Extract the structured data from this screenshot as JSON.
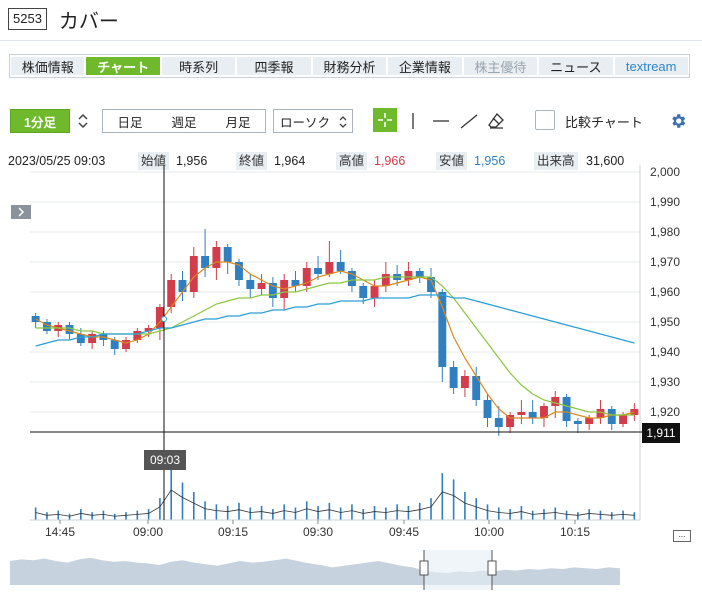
{
  "header": {
    "code": "5253",
    "name": "カバー"
  },
  "tabs": [
    {
      "label": "株価情報",
      "state": "normal"
    },
    {
      "label": "チャート",
      "state": "active"
    },
    {
      "label": "時系列",
      "state": "normal"
    },
    {
      "label": "四季報",
      "state": "normal"
    },
    {
      "label": "財務分析",
      "state": "normal"
    },
    {
      "label": "企業情報",
      "state": "normal"
    },
    {
      "label": "株主優待",
      "state": "muted"
    },
    {
      "label": "ニュース",
      "state": "normal"
    },
    {
      "label": "textream",
      "state": "link"
    }
  ],
  "toolbar": {
    "interval": "1分足",
    "periods": [
      "日足",
      "週足",
      "月足"
    ],
    "chart_type": "ローソク",
    "compare_label": "比較チャート"
  },
  "info": {
    "datetime": "2023/05/25 09:03",
    "open_label": "始値",
    "open": "1,956",
    "close_label": "終値",
    "close": "1,964",
    "high_label": "高値",
    "high": "1,966",
    "low_label": "安値",
    "low": "1,956",
    "volume_label": "出来高",
    "volume": "31,600"
  },
  "crosshair": {
    "time": "09:03",
    "price": "1,911"
  },
  "colors": {
    "up": "#d23c4b",
    "down": "#2f7fc1",
    "ma_short": "#d88a1e",
    "ma_mid": "#8cc63f",
    "ma_long": "#2a9fd6",
    "accent": "#6fb92c"
  },
  "chart_data": {
    "type": "candlestick",
    "y_axis": {
      "ticks": [
        2000,
        1990,
        1980,
        1970,
        1960,
        1950,
        1940,
        1930,
        1920
      ],
      "tick_labels": [
        "2,000",
        "1,990",
        "1,980",
        "1,970",
        "1,960",
        "1,950",
        "1,940",
        "1,930",
        "1,920"
      ],
      "ylim": [
        1910,
        2000
      ]
    },
    "x_axis": {
      "tick_labels": [
        "14:45",
        "09:00",
        "09:15",
        "09:30",
        "09:45",
        "10:00",
        "10:15"
      ]
    },
    "candles": [
      [
        1952,
        1953,
        1948,
        1950
      ],
      [
        1950,
        1951,
        1946,
        1947
      ],
      [
        1947,
        1950,
        1945,
        1949
      ],
      [
        1949,
        1950,
        1944,
        1946
      ],
      [
        1946,
        1948,
        1942,
        1943
      ],
      [
        1943,
        1947,
        1941,
        1946
      ],
      [
        1946,
        1947,
        1942,
        1944
      ],
      [
        1944,
        1945,
        1939,
        1941
      ],
      [
        1941,
        1945,
        1940,
        1944
      ],
      [
        1944,
        1948,
        1943,
        1947
      ],
      [
        1947,
        1949,
        1945,
        1948
      ],
      [
        1948,
        1956,
        1944,
        1955
      ],
      [
        1955,
        1966,
        1953,
        1964
      ],
      [
        1964,
        1967,
        1957,
        1960
      ],
      [
        1960,
        1975,
        1958,
        1972
      ],
      [
        1972,
        1981,
        1965,
        1968
      ],
      [
        1968,
        1977,
        1964,
        1975
      ],
      [
        1975,
        1976,
        1966,
        1970
      ],
      [
        1970,
        1971,
        1962,
        1964
      ],
      [
        1964,
        1966,
        1958,
        1961
      ],
      [
        1961,
        1966,
        1959,
        1963
      ],
      [
        1963,
        1965,
        1955,
        1958
      ],
      [
        1958,
        1966,
        1954,
        1964
      ],
      [
        1964,
        1967,
        1960,
        1962
      ],
      [
        1962,
        1970,
        1960,
        1968
      ],
      [
        1968,
        1972,
        1964,
        1966
      ],
      [
        1966,
        1977,
        1965,
        1970
      ],
      [
        1970,
        1974,
        1966,
        1967
      ],
      [
        1967,
        1968,
        1960,
        1962
      ],
      [
        1962,
        1963,
        1956,
        1958
      ],
      [
        1958,
        1964,
        1955,
        1962
      ],
      [
        1962,
        1970,
        1960,
        1966
      ],
      [
        1966,
        1969,
        1962,
        1964
      ],
      [
        1964,
        1970,
        1962,
        1967
      ],
      [
        1967,
        1968,
        1963,
        1965
      ],
      [
        1965,
        1968,
        1958,
        1960
      ],
      [
        1960,
        1961,
        1930,
        1935
      ],
      [
        1935,
        1937,
        1926,
        1928
      ],
      [
        1928,
        1934,
        1925,
        1932
      ],
      [
        1932,
        1935,
        1922,
        1924
      ],
      [
        1924,
        1926,
        1915,
        1918
      ],
      [
        1918,
        1922,
        1912,
        1915
      ],
      [
        1915,
        1920,
        1913,
        1919
      ],
      [
        1919,
        1924,
        1916,
        1920
      ],
      [
        1920,
        1924,
        1916,
        1918
      ],
      [
        1918,
        1923,
        1915,
        1922
      ],
      [
        1922,
        1927,
        1918,
        1925
      ],
      [
        1925,
        1926,
        1915,
        1917
      ],
      [
        1917,
        1918,
        1913,
        1916
      ],
      [
        1916,
        1919,
        1914,
        1918
      ],
      [
        1918,
        1924,
        1916,
        1921
      ],
      [
        1921,
        1922,
        1914,
        1916
      ],
      [
        1916,
        1920,
        1915,
        1919
      ],
      [
        1919,
        1923,
        1917,
        1921
      ]
    ],
    "ma_short": [
      1951,
      1949,
      1948,
      1947,
      1946,
      1945,
      1945,
      1944,
      1943,
      1944,
      1946,
      1950,
      1955,
      1960,
      1965,
      1968,
      1970,
      1970,
      1969,
      1966,
      1964,
      1962,
      1961,
      1962,
      1963,
      1965,
      1966,
      1967,
      1966,
      1964,
      1962,
      1962,
      1963,
      1964,
      1965,
      1964,
      1955,
      1945,
      1938,
      1932,
      1926,
      1921,
      1918,
      1918,
      1918,
      1918,
      1920,
      1920,
      1919,
      1918,
      1918,
      1919,
      1919,
      1920
    ],
    "ma_mid": [
      1948,
      1948,
      1948,
      1948,
      1947,
      1947,
      1946,
      1946,
      1946,
      1946,
      1946,
      1947,
      1948,
      1950,
      1952,
      1954,
      1956,
      1957,
      1958,
      1958,
      1959,
      1959,
      1960,
      1960,
      1961,
      1962,
      1963,
      1963,
      1964,
      1964,
      1964,
      1965,
      1965,
      1965,
      1965,
      1965,
      1962,
      1958,
      1953,
      1948,
      1943,
      1938,
      1933,
      1929,
      1926,
      1924,
      1923,
      1922,
      1921,
      1920,
      1920,
      1919,
      1919,
      1919
    ],
    "ma_long": [
      1942,
      1943,
      1944,
      1944,
      1945,
      1945,
      1946,
      1946,
      1946,
      1946,
      1947,
      1948,
      1948,
      1949,
      1950,
      1951,
      1951,
      1952,
      1952,
      1953,
      1953,
      1954,
      1954,
      1955,
      1955,
      1956,
      1956,
      1957,
      1957,
      1957,
      1958,
      1958,
      1958,
      1958,
      1959,
      1959,
      1959,
      1958,
      1958,
      1957,
      1956,
      1955,
      1954,
      1953,
      1952,
      1951,
      1950,
      1949,
      1948,
      1947,
      1946,
      1945,
      1944,
      1943
    ],
    "volume": [
      8,
      5,
      6,
      4,
      7,
      5,
      6,
      4,
      5,
      6,
      7,
      14,
      32,
      24,
      18,
      12,
      10,
      9,
      11,
      8,
      9,
      7,
      10,
      8,
      12,
      9,
      11,
      8,
      10,
      7,
      9,
      8,
      10,
      9,
      11,
      14,
      30,
      26,
      18,
      14,
      10,
      8,
      7,
      9,
      6,
      7,
      8,
      6,
      5,
      7,
      6,
      5,
      6,
      5
    ]
  }
}
